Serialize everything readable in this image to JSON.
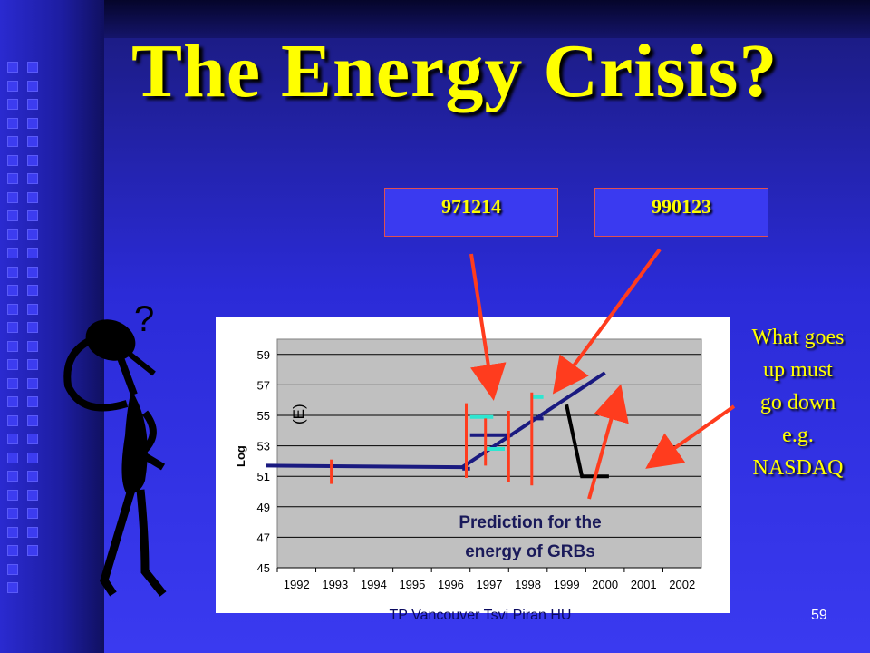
{
  "slide": {
    "title": "The Energy Crisis?",
    "box_left": "971214",
    "box_right": "990123",
    "note_lines": [
      "What goes",
      "up must",
      "go down",
      "e.g.",
      "NASDAQ"
    ],
    "prediction_line1": "Prediction for the",
    "prediction_line2": "energy of GRBs",
    "question_mark": "?",
    "footer": "TP Vancouver Tsvi Piran  HU",
    "page_number": "59"
  },
  "colors": {
    "title": "#ffff00",
    "arrow": "#ff3c1e",
    "trend": "#1a1a80",
    "cyan": "#2ee6d0",
    "plot_bg": "#c0c0c0",
    "nasdaq_line": "#000000"
  },
  "chart_data": {
    "type": "line",
    "ylabel": "Log",
    "ylabel_extra": "(E)",
    "ylim": [
      45,
      60
    ],
    "yticks": [
      "59",
      "57",
      "55",
      "53",
      "51",
      "49",
      "47",
      "45"
    ],
    "xlim": [
      1992,
      2003
    ],
    "categories": [
      "1992",
      "1993",
      "1994",
      "1995",
      "1996",
      "1997",
      "1998",
      "1999",
      "2000",
      "2001",
      "2002"
    ],
    "grid": true,
    "series": [
      {
        "kind": "trend",
        "points": [
          [
            1991.7,
            51.7
          ],
          [
            1996.8,
            51.6
          ],
          [
            2000.5,
            57.8
          ]
        ]
      },
      {
        "kind": "base",
        "points": [
          [
            1996.8,
            51.5
          ],
          [
            1997.0,
            51.5
          ]
        ]
      },
      {
        "kind": "dark_bar",
        "points": [
          [
            1997.0,
            53.7
          ],
          [
            1998.1,
            53.7
          ]
        ]
      },
      {
        "kind": "dark_bar",
        "points": [
          [
            1998.6,
            54.8
          ],
          [
            1998.9,
            54.8
          ]
        ]
      },
      {
        "kind": "cyan_bar",
        "points": [
          [
            1997.0,
            54.9
          ],
          [
            1997.6,
            54.9
          ]
        ]
      },
      {
        "kind": "cyan_bar",
        "points": [
          [
            1997.4,
            52.8
          ],
          [
            1997.9,
            52.8
          ]
        ]
      },
      {
        "kind": "cyan_bar",
        "points": [
          [
            1998.6,
            56.2
          ],
          [
            1998.9,
            56.2
          ]
        ]
      },
      {
        "kind": "nasdaq",
        "points": [
          [
            1999.5,
            55.7
          ],
          [
            1999.9,
            51.0
          ],
          [
            2000.6,
            51.0
          ]
        ]
      },
      {
        "kind": "marker",
        "points": [
          [
            1993.4,
            50.5
          ],
          [
            1993.4,
            52.1
          ]
        ]
      },
      {
        "kind": "marker",
        "points": [
          [
            1996.9,
            50.9
          ],
          [
            1996.9,
            55.8
          ]
        ]
      },
      {
        "kind": "marker",
        "points": [
          [
            1997.4,
            51.7
          ],
          [
            1997.4,
            54.8
          ]
        ]
      },
      {
        "kind": "marker",
        "points": [
          [
            1998.0,
            50.6
          ],
          [
            1998.0,
            55.3
          ]
        ]
      },
      {
        "kind": "marker",
        "points": [
          [
            1998.6,
            50.4
          ],
          [
            1998.6,
            56.5
          ]
        ]
      }
    ]
  }
}
